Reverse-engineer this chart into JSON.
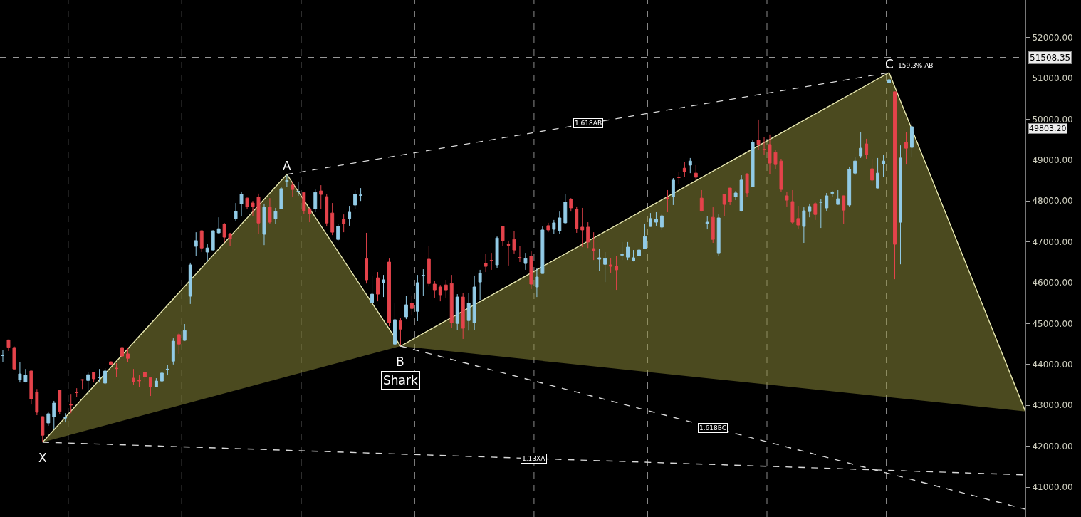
{
  "chart_data": {
    "type": "candlestick",
    "categories": [
      null,
      null,
      null,
      null,
      null,
      null,
      null,
      null,
      null,
      null,
      null,
      null,
      null,
      null,
      null,
      null,
      null,
      null,
      null,
      null,
      null,
      null,
      null,
      null,
      null,
      null,
      null,
      null,
      null,
      null,
      null,
      null,
      null,
      null,
      null,
      null,
      null,
      null,
      null,
      null,
      null,
      null,
      null,
      null,
      null,
      null,
      null,
      null,
      null,
      null,
      null,
      null,
      null,
      null,
      null,
      null,
      null,
      null,
      null,
      null,
      null,
      null,
      null,
      null,
      null,
      null,
      null,
      null,
      null,
      null,
      null,
      null,
      null,
      null,
      null,
      null,
      null,
      null,
      null,
      null,
      null,
      null,
      null,
      null,
      null,
      null,
      null,
      null,
      null,
      null,
      null,
      null,
      null,
      null,
      null,
      null,
      null,
      null,
      null,
      null,
      null,
      null,
      null,
      null,
      null,
      null,
      null,
      null,
      null,
      null,
      null,
      null,
      null,
      null,
      null,
      null,
      null,
      null,
      null,
      null,
      null,
      null,
      null,
      null,
      null,
      null,
      null,
      null,
      null,
      null,
      null,
      null,
      null,
      null,
      null,
      null,
      null,
      null,
      null,
      null,
      null,
      null,
      null,
      null,
      null,
      null,
      null,
      null,
      null,
      null,
      null,
      null,
      null,
      null,
      null,
      null,
      null,
      null,
      null,
      null,
      null,
      null,
      null,
      null,
      null,
      null,
      null,
      null,
      null,
      null,
      null,
      null,
      null,
      null,
      null,
      null,
      null,
      null,
      null,
      null,
      null
    ],
    "ohlc": [
      [
        44220,
        44360,
        44050,
        44220
      ],
      [
        44600,
        44610,
        44330,
        44420
      ],
      [
        44415,
        44440,
        43860,
        43890
      ],
      [
        43630,
        44065,
        43560,
        43770
      ],
      [
        43580,
        43890,
        43560,
        43735
      ],
      [
        43840,
        43850,
        43020,
        43160
      ],
      [
        43320,
        43400,
        42760,
        42830
      ],
      [
        42725,
        42730,
        42115,
        42270
      ],
      [
        42570,
        42850,
        42500,
        42795
      ],
      [
        42725,
        43110,
        42410,
        43055
      ],
      [
        43370,
        43370,
        42795,
        42850
      ],
      [
        42690,
        42810,
        42585,
        42700
      ],
      [
        43020,
        43280,
        42810,
        43010
      ],
      [
        43320,
        43420,
        43210,
        43310
      ],
      [
        43630,
        43640,
        43400,
        43620
      ],
      [
        43610,
        43805,
        43280,
        43750
      ],
      [
        43805,
        43810,
        43560,
        43650
      ],
      [
        43680,
        43890,
        43560,
        43690
      ],
      [
        43545,
        43910,
        43510,
        43840
      ],
      [
        44065,
        44070,
        43990,
        44000
      ],
      [
        43910,
        44030,
        43700,
        43900
      ],
      [
        44415,
        44420,
        44150,
        44205
      ],
      [
        44260,
        44415,
        44065,
        44150
      ],
      [
        43665,
        43890,
        43510,
        43580
      ],
      [
        43610,
        43735,
        43440,
        43600
      ],
      [
        43805,
        43810,
        43580,
        43700
      ],
      [
        43680,
        43690,
        43230,
        43455
      ],
      [
        43455,
        43665,
        43440,
        43595
      ],
      [
        43595,
        43820,
        43580,
        43790
      ],
      [
        43875,
        43980,
        43735,
        43885
      ],
      [
        44080,
        44640,
        44000,
        44570
      ],
      [
        44730,
        44780,
        44260,
        44500
      ],
      [
        44590,
        44990,
        44580,
        44830
      ],
      [
        45670,
        46490,
        45480,
        46435
      ],
      [
        46890,
        47235,
        46660,
        47030
      ],
      [
        47270,
        47280,
        46750,
        46850
      ],
      [
        46750,
        46940,
        46520,
        46850
      ],
      [
        46800,
        47280,
        46790,
        47270
      ],
      [
        47220,
        47600,
        47185,
        47320
      ],
      [
        47430,
        47460,
        46990,
        47115
      ],
      [
        47200,
        47220,
        46890,
        47080
      ],
      [
        47570,
        47950,
        47500,
        47740
      ],
      [
        47930,
        48230,
        47635,
        48160
      ],
      [
        48070,
        48080,
        47810,
        47860
      ],
      [
        47950,
        48000,
        47635,
        47860
      ],
      [
        48090,
        48180,
        47200,
        47460
      ],
      [
        47185,
        47935,
        46920,
        47845
      ],
      [
        47845,
        48070,
        47430,
        47480
      ],
      [
        47570,
        47830,
        47430,
        47740
      ],
      [
        47810,
        48335,
        47795,
        48300
      ],
      [
        48480,
        48630,
        48350,
        48500
      ],
      [
        48385,
        48475,
        48090,
        48280
      ],
      [
        48225,
        48475,
        48125,
        48235
      ],
      [
        48210,
        48220,
        47690,
        47760
      ],
      [
        47810,
        47820,
        47480,
        47690
      ],
      [
        47810,
        48280,
        47725,
        48210
      ],
      [
        48245,
        48385,
        47810,
        48160
      ],
      [
        48105,
        48160,
        47375,
        47460
      ],
      [
        47705,
        47950,
        47165,
        47235
      ],
      [
        47060,
        47430,
        47010,
        47375
      ],
      [
        47550,
        47670,
        47235,
        47445
      ],
      [
        47570,
        47880,
        47395,
        47725
      ],
      [
        47900,
        48265,
        47810,
        48160
      ],
      [
        48135,
        48315,
        48000,
        48145
      ],
      [
        46590,
        47220,
        45980,
        46070
      ],
      [
        45510,
        46175,
        45440,
        45720
      ],
      [
        46120,
        46260,
        45545,
        45720
      ],
      [
        46000,
        46190,
        45650,
        46070
      ],
      [
        46505,
        46590,
        44935,
        45025
      ],
      [
        44500,
        45495,
        44480,
        45095
      ],
      [
        45075,
        45145,
        44465,
        44865
      ],
      [
        45165,
        45670,
        45110,
        45460
      ],
      [
        45495,
        45685,
        45200,
        45370
      ],
      [
        45300,
        46190,
        45060,
        46000
      ],
      [
        46170,
        46330,
        45685,
        46180
      ],
      [
        46575,
        46905,
        45910,
        45980
      ],
      [
        45965,
        46050,
        45635,
        45825
      ],
      [
        45895,
        45945,
        45545,
        45705
      ],
      [
        45945,
        46070,
        45635,
        45825
      ],
      [
        45980,
        46190,
        44885,
        45025
      ],
      [
        45005,
        45720,
        44850,
        45650
      ],
      [
        45650,
        45755,
        44625,
        44885
      ],
      [
        45075,
        45755,
        44830,
        45495
      ],
      [
        45025,
        46175,
        44850,
        45895
      ],
      [
        46015,
        46315,
        45580,
        46225
      ],
      [
        46470,
        46700,
        46260,
        46400
      ],
      [
        46545,
        46730,
        46315,
        46535
      ],
      [
        46435,
        47130,
        46365,
        47095
      ],
      [
        47375,
        47380,
        46905,
        47030
      ],
      [
        46930,
        47030,
        46420,
        46920
      ],
      [
        47060,
        47255,
        46715,
        46800
      ],
      [
        46615,
        46905,
        46505,
        46605
      ],
      [
        46470,
        46730,
        46315,
        46590
      ],
      [
        46645,
        46765,
        45845,
        45965
      ],
      [
        45895,
        46350,
        45650,
        46140
      ],
      [
        46225,
        47375,
        46220,
        47290
      ],
      [
        47395,
        47465,
        47235,
        47290
      ],
      [
        47305,
        47535,
        47200,
        47465
      ],
      [
        47270,
        47740,
        47200,
        47585
      ],
      [
        47465,
        48175,
        47430,
        47970
      ],
      [
        48040,
        48070,
        47740,
        47830
      ],
      [
        47795,
        47865,
        47220,
        47325
      ],
      [
        47360,
        47830,
        46870,
        47290
      ],
      [
        47360,
        47480,
        46850,
        46995
      ],
      [
        46835,
        47235,
        46555,
        46785
      ],
      [
        46575,
        46820,
        46295,
        46610
      ],
      [
        46450,
        46750,
        46015,
        46590
      ],
      [
        46435,
        46610,
        46245,
        46400
      ],
      [
        46400,
        46660,
        45825,
        46315
      ],
      [
        46675,
        46995,
        46555,
        46685
      ],
      [
        46625,
        46995,
        46555,
        46870
      ],
      [
        46540,
        46800,
        46520,
        46610
      ],
      [
        46660,
        46960,
        46655,
        46800
      ],
      [
        46835,
        47445,
        46830,
        47130
      ],
      [
        47375,
        47705,
        47370,
        47570
      ],
      [
        47480,
        47725,
        47395,
        47550
      ],
      [
        47360,
        47690,
        47290,
        47635
      ],
      [
        48075,
        48265,
        47725,
        48065
      ],
      [
        48105,
        48560,
        47900,
        48510
      ],
      [
        48585,
        48715,
        48420,
        48575
      ],
      [
        48800,
        48960,
        48580,
        48715
      ],
      [
        48875,
        49050,
        48680,
        48975
      ],
      [
        48680,
        48875,
        48510,
        48580
      ],
      [
        48070,
        48265,
        47740,
        47760
      ],
      [
        47445,
        47620,
        47305,
        47480
      ],
      [
        47600,
        47845,
        46975,
        47060
      ],
      [
        46730,
        47670,
        46645,
        47585
      ],
      [
        48160,
        48165,
        47635,
        47915
      ],
      [
        48315,
        48320,
        47900,
        47985
      ],
      [
        48105,
        48245,
        48020,
        48195
      ],
      [
        47760,
        48630,
        47740,
        48510
      ],
      [
        48665,
        48670,
        48090,
        48195
      ],
      [
        48350,
        49485,
        48335,
        49430
      ],
      [
        49485,
        49990,
        49255,
        49380
      ],
      [
        49260,
        49570,
        49135,
        49250
      ],
      [
        49380,
        49625,
        48665,
        48925
      ],
      [
        49185,
        49255,
        48785,
        48890
      ],
      [
        48975,
        49030,
        48230,
        48280
      ],
      [
        48125,
        48230,
        47865,
        48020
      ],
      [
        47985,
        48265,
        47430,
        47480
      ],
      [
        47570,
        47880,
        47305,
        47410
      ],
      [
        47375,
        47845,
        46975,
        47760
      ],
      [
        47740,
        47935,
        47600,
        47865
      ],
      [
        47935,
        47985,
        47535,
        47670
      ],
      [
        47965,
        48055,
        47340,
        47975
      ],
      [
        47830,
        48195,
        47760,
        48125
      ],
      [
        48190,
        48245,
        48105,
        48200
      ],
      [
        47915,
        48265,
        47910,
        48055
      ],
      [
        48125,
        48130,
        47430,
        47775
      ],
      [
        47900,
        48840,
        47865,
        48770
      ],
      [
        48680,
        49065,
        48630,
        48975
      ],
      [
        49100,
        49690,
        49050,
        49290
      ],
      [
        49395,
        49520,
        49030,
        49135
      ],
      [
        48785,
        49030,
        48400,
        48510
      ],
      [
        48315,
        49050,
        48310,
        48680
      ],
      [
        48910,
        49135,
        48580,
        48975
      ],
      [
        50895,
        51140,
        50075,
        50965
      ],
      [
        50670,
        50675,
        46085,
        46940
      ],
      [
        47480,
        49360,
        46450,
        49050
      ],
      [
        49430,
        49675,
        48890,
        49290
      ],
      [
        49310,
        49955,
        49065,
        49815
      ],
      null,
      null,
      null,
      null,
      null,
      null,
      null,
      null,
      null,
      null,
      null,
      null,
      null,
      null,
      null,
      null,
      null,
      null,
      null,
      null
    ],
    "colors": [
      "#92cbe6",
      "#e4434b",
      "#e4434b",
      "#92cbe6",
      "#92cbe6",
      "#e4434b",
      "#e4434b",
      "#e4434b",
      "#92cbe6",
      "#92cbe6",
      "#e4434b",
      "#92cbe6",
      "#e4434b",
      "#e4434b",
      "#e4434b",
      "#92cbe6",
      "#e4434b",
      "#92cbe6",
      "#92cbe6",
      "#e4434b",
      "#e4434b",
      "#e4434b",
      "#e4434b",
      "#e4434b",
      "#e4434b",
      "#e4434b",
      "#e4434b",
      "#92cbe6",
      "#92cbe6",
      "#92cbe6",
      "#92cbe6",
      "#e4434b",
      "#92cbe6",
      "#92cbe6",
      "#92cbe6",
      "#e4434b",
      "#92cbe6",
      "#92cbe6",
      "#92cbe6",
      "#e4434b",
      "#e4434b",
      "#92cbe6",
      "#92cbe6",
      "#e4434b",
      "#e4434b",
      "#e4434b",
      "#92cbe6",
      "#e4434b",
      "#92cbe6",
      "#92cbe6",
      "#92cbe6",
      "#e4434b",
      "#92cbe6",
      "#e4434b",
      "#e4434b",
      "#92cbe6",
      "#e4434b",
      "#e4434b",
      "#e4434b",
      "#92cbe6",
      "#e4434b",
      "#92cbe6",
      "#92cbe6",
      "#92cbe6",
      "#e4434b",
      "#92cbe6",
      "#e4434b",
      "#92cbe6",
      "#e4434b",
      "#92cbe6",
      "#e4434b",
      "#92cbe6",
      "#e4434b",
      "#92cbe6",
      "#92cbe6",
      "#e4434b",
      "#e4434b",
      "#e4434b",
      "#e4434b",
      "#e4434b",
      "#92cbe6",
      "#e4434b",
      "#92cbe6",
      "#92cbe6",
      "#92cbe6",
      "#e4434b",
      "#e4434b",
      "#92cbe6",
      "#e4434b",
      "#e4434b",
      "#e4434b",
      "#e4434b",
      "#92cbe6",
      "#e4434b",
      "#92cbe6",
      "#92cbe6",
      "#e4434b",
      "#92cbe6",
      "#92cbe6",
      "#92cbe6",
      "#e4434b",
      "#e4434b",
      "#e4434b",
      "#e4434b",
      "#e4434b",
      "#92cbe6",
      "#92cbe6",
      "#e4434b",
      "#e4434b",
      "#92cbe6",
      "#92cbe6",
      "#92cbe6",
      "#92cbe6",
      "#92cbe6",
      "#92cbe6",
      "#92cbe6",
      "#92cbe6",
      "#e4434b",
      "#92cbe6",
      "#e4434b",
      "#e4434b",
      "#92cbe6",
      "#e4434b",
      "#e4434b",
      "#92cbe6",
      "#e4434b",
      "#92cbe6",
      "#e4434b",
      "#e4434b",
      "#92cbe6",
      "#92cbe6",
      "#e4434b",
      "#92cbe6",
      "#e4434b",
      "#e4434b",
      "#e4434b",
      "#e4434b",
      "#e4434b",
      "#e4434b",
      "#e4434b",
      "#e4434b",
      "#92cbe6",
      "#92cbe6",
      "#e4434b",
      "#92cbe6",
      "#92cbe6",
      "#92cbe6",
      "#92cbe6",
      "#e4434b",
      "#92cbe6",
      "#92cbe6",
      "#92cbe6",
      "#e4434b",
      "#e4434b",
      "#92cbe6",
      "#92cbe6",
      "#92cbe6",
      "#e4434b",
      "#92cbe6",
      "#e4434b",
      "#92cbe6",
      null,
      null,
      null,
      null,
      null,
      null,
      null,
      null,
      null,
      null,
      null,
      null,
      null,
      null,
      null,
      null,
      null,
      null,
      null,
      null
    ],
    "series": [
      {
        "type": "line",
        "color": "#e8e8b0",
        "line_style": "solid",
        "values": [
          null,
          null,
          null,
          null,
          null,
          null,
          null,
          42100,
          null,
          null,
          null,
          null,
          null,
          null,
          null,
          null,
          null,
          null,
          null,
          null,
          null,
          null,
          null,
          null,
          null,
          null,
          null,
          null,
          null,
          null,
          null,
          null,
          null,
          null,
          null,
          null,
          null,
          null,
          null,
          null,
          null,
          null,
          null,
          null,
          null,
          null,
          null,
          null,
          null,
          null,
          48650,
          null,
          null,
          null,
          null,
          null,
          null,
          null,
          null,
          null,
          null,
          null,
          null,
          null,
          null,
          null,
          null,
          null,
          null,
          null,
          44450,
          null,
          null,
          null,
          null,
          null,
          null,
          null,
          null,
          null,
          null,
          null,
          null,
          null,
          null,
          null,
          null,
          null,
          null,
          null,
          null,
          null,
          null,
          null,
          null,
          null,
          null,
          null,
          null,
          null,
          null,
          null,
          null,
          null,
          null,
          null,
          null,
          null,
          null,
          null,
          null,
          null,
          null,
          null,
          null,
          null,
          null,
          null,
          null,
          null,
          null,
          null,
          null,
          null,
          null,
          null,
          null,
          null,
          null,
          null,
          null,
          null,
          null,
          null,
          null,
          null,
          null,
          null,
          null,
          null,
          null,
          null,
          null,
          null,
          null,
          null,
          null,
          null,
          null,
          null,
          null,
          null,
          null,
          null,
          null,
          null,
          51140,
          null,
          null,
          null,
          null,
          null,
          null,
          null,
          null,
          null,
          null,
          null,
          null,
          null,
          null,
          null,
          null,
          null,
          null,
          null,
          null,
          null,
          null,
          null,
          42850
        ]
      },
      {
        "type": "line",
        "name": "1.618AB",
        "color": "#d8d8d8",
        "line_style": "dashed",
        "values": [
          null,
          null,
          null,
          null,
          null,
          null,
          null,
          null,
          null,
          null,
          null,
          null,
          null,
          null,
          null,
          null,
          null,
          null,
          null,
          null,
          null,
          null,
          null,
          null,
          null,
          null,
          null,
          null,
          null,
          null,
          null,
          null,
          null,
          null,
          null,
          null,
          null,
          null,
          null,
          null,
          null,
          null,
          null,
          null,
          null,
          null,
          null,
          null,
          null,
          null,
          48650,
          null,
          null,
          null,
          null,
          null,
          null,
          null,
          null,
          null,
          null,
          null,
          null,
          null,
          null,
          null,
          null,
          null,
          null,
          null,
          null,
          null,
          null,
          null,
          null,
          null,
          null,
          null,
          null,
          null,
          null,
          null,
          null,
          null,
          null,
          null,
          null,
          null,
          null,
          null,
          null,
          null,
          null,
          null,
          null,
          null,
          null,
          null,
          null,
          null,
          null,
          null,
          null,
          null,
          null,
          null,
          null,
          null,
          null,
          null,
          null,
          null,
          null,
          null,
          null,
          null,
          null,
          null,
          null,
          null,
          null,
          null,
          null,
          null,
          null,
          null,
          null,
          null,
          null,
          null,
          null,
          null,
          null,
          null,
          null,
          null,
          null,
          null,
          null,
          null,
          null,
          null,
          null,
          null,
          null,
          null,
          null,
          null,
          null,
          null,
          null,
          null,
          null,
          null,
          null,
          null,
          51140,
          null,
          null,
          null,
          null,
          null,
          null,
          null,
          null,
          null,
          null,
          null,
          null,
          null,
          null,
          null,
          null,
          null,
          null,
          null,
          null,
          null,
          null,
          null,
          null
        ]
      },
      {
        "type": "line",
        "name": "1.618BC",
        "color": "#d8d8d8",
        "line_style": "dashed",
        "values": [
          null,
          null,
          null,
          null,
          null,
          null,
          null,
          null,
          null,
          null,
          null,
          null,
          null,
          null,
          null,
          null,
          null,
          null,
          null,
          null,
          null,
          null,
          null,
          null,
          null,
          null,
          null,
          null,
          null,
          null,
          null,
          null,
          null,
          null,
          null,
          null,
          null,
          null,
          null,
          null,
          null,
          null,
          null,
          null,
          null,
          null,
          null,
          null,
          null,
          null,
          null,
          null,
          null,
          null,
          null,
          null,
          null,
          null,
          null,
          null,
          null,
          null,
          null,
          null,
          null,
          null,
          null,
          null,
          null,
          null,
          44450,
          null,
          null,
          null,
          null,
          null,
          null,
          null,
          null,
          null,
          null,
          null,
          null,
          null,
          null,
          null,
          null,
          null,
          null,
          null,
          null,
          null,
          null,
          null,
          null,
          null,
          null,
          null,
          null,
          null,
          null,
          null,
          null,
          null,
          null,
          null,
          null,
          null,
          null,
          null,
          null,
          null,
          null,
          null,
          null,
          null,
          null,
          null,
          null,
          null,
          null,
          null,
          null,
          null,
          null,
          null,
          null,
          null,
          null,
          null,
          null,
          null,
          null,
          null,
          null,
          null,
          null,
          null,
          null,
          null,
          null,
          null,
          null,
          null,
          null,
          null,
          null,
          null,
          null,
          null,
          null,
          null,
          null,
          null,
          null,
          null,
          null,
          null,
          null,
          null,
          null,
          null,
          null,
          null,
          null,
          null,
          null,
          null,
          null,
          null,
          null,
          null,
          null,
          null,
          null,
          null,
          null,
          null,
          null,
          null,
          40460
        ]
      },
      {
        "type": "line",
        "name": "1.13XA",
        "color": "#d8d8d8",
        "line_style": "dashed",
        "values": [
          null,
          null,
          null,
          null,
          null,
          null,
          null,
          42100,
          null,
          null,
          null,
          null,
          null,
          null,
          null,
          null,
          null,
          null,
          null,
          null,
          null,
          null,
          null,
          null,
          null,
          null,
          null,
          null,
          null,
          null,
          null,
          null,
          null,
          null,
          null,
          null,
          null,
          null,
          null,
          null,
          null,
          null,
          null,
          null,
          null,
          null,
          null,
          null,
          null,
          null,
          null,
          null,
          null,
          null,
          null,
          null,
          null,
          null,
          null,
          null,
          null,
          null,
          null,
          null,
          null,
          null,
          null,
          null,
          null,
          null,
          null,
          null,
          null,
          null,
          null,
          null,
          null,
          null,
          null,
          null,
          null,
          null,
          null,
          null,
          null,
          null,
          null,
          null,
          null,
          null,
          null,
          null,
          null,
          null,
          null,
          null,
          null,
          null,
          null,
          null,
          null,
          null,
          null,
          null,
          null,
          null,
          null,
          null,
          null,
          null,
          null,
          null,
          null,
          null,
          null,
          null,
          null,
          null,
          null,
          null,
          null,
          null,
          null,
          null,
          null,
          null,
          null,
          null,
          null,
          null,
          null,
          null,
          null,
          null,
          null,
          null,
          null,
          null,
          null,
          null,
          null,
          null,
          null,
          null,
          null,
          null,
          null,
          null,
          null,
          null,
          null,
          null,
          null,
          null,
          null,
          null,
          null,
          null,
          null,
          null,
          null,
          null,
          null,
          null,
          null,
          null,
          null,
          null,
          null,
          null,
          null,
          null,
          null,
          null,
          null,
          null,
          null,
          null,
          null,
          null,
          41300
        ]
      }
    ],
    "ylim": [
      40270,
      52915
    ],
    "yticks": [
      {
        "value": 41000,
        "label": "41000.00"
      },
      {
        "value": 42000,
        "label": "42000.00"
      },
      {
        "value": 43000,
        "label": "43000.00"
      },
      {
        "value": 44000,
        "label": "44000.00"
      },
      {
        "value": 45000,
        "label": "45000.00"
      },
      {
        "value": 46000,
        "label": "46000.00"
      },
      {
        "value": 47000,
        "label": "47000.00"
      },
      {
        "value": 48000,
        "label": "48000.00"
      },
      {
        "value": 49000,
        "label": "49000.00"
      },
      {
        "value": 50000,
        "label": "50000.00"
      },
      {
        "value": 51000,
        "label": "51000.00"
      },
      {
        "value": 52000,
        "label": "52000.00"
      }
    ],
    "ref_lines": [
      {
        "axis": "y",
        "value": 51508.35,
        "label": "51508.35",
        "color": "#c8c8c8",
        "line_style": "dashed"
      }
    ],
    "annotations": [
      "X",
      "A",
      "B",
      "C",
      "Shark",
      "159.3% AB",
      "49803.20"
    ],
    "legend": false
  }
}
